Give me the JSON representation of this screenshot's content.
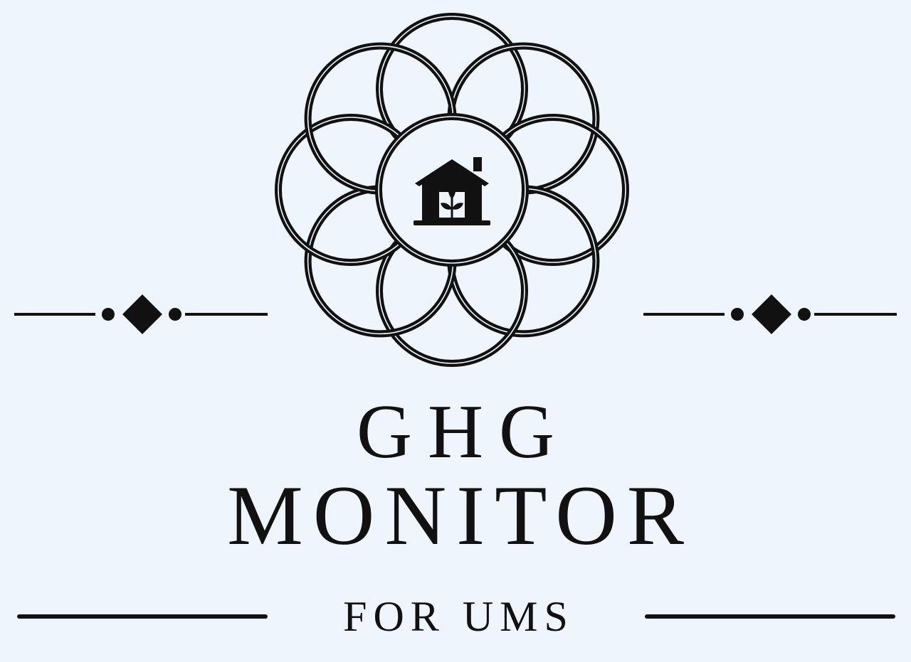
{
  "logo": {
    "title_line_1": "GHG",
    "title_line_2": "MONITOR",
    "subtitle": "FOR UMS"
  },
  "icons": {
    "emblem": "flower-of-life-rings-icon",
    "center": "house-with-sprout-icon",
    "ornament": "diamond-divider-icon"
  },
  "colors": {
    "background": "#eef5fd",
    "ink": "#111111"
  }
}
